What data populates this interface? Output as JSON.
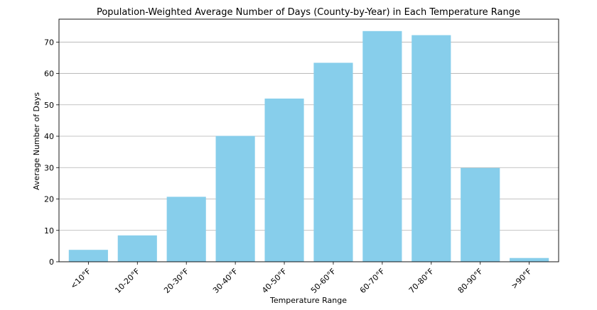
{
  "chart_data": {
    "type": "bar",
    "title": "Population-Weighted Average Number of Days (County-by-Year) in Each Temperature Range",
    "xlabel": "Temperature Range",
    "ylabel": "Average Number of Days",
    "categories": [
      "<10°F",
      "10-20°F",
      "20-30°F",
      "30-40°F",
      "40-50°F",
      "50-60°F",
      "60-70°F",
      "70-80°F",
      "80-90°F",
      ">90°F"
    ],
    "values": [
      3.8,
      8.4,
      20.7,
      40.1,
      52.0,
      63.4,
      73.5,
      72.2,
      29.9,
      1.2
    ],
    "ylim": [
      0,
      77.3
    ],
    "yticks": [
      0,
      10,
      20,
      30,
      40,
      50,
      60,
      70
    ],
    "grid": "horizontal",
    "colors": {
      "bar": "#87ceeb",
      "grid": "#b0b0b0",
      "axis": "#000000"
    }
  }
}
